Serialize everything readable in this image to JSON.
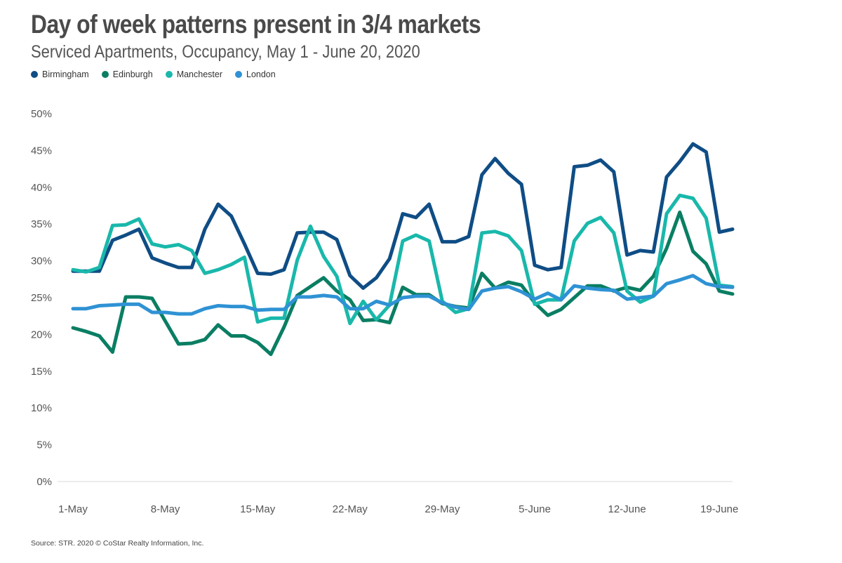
{
  "title": "Day of week patterns present in 3/4 markets",
  "subtitle": "Serviced Apartments, Occupancy, May 1 - June 20, 2020",
  "source": "Source: STR. 2020 © CoStar Realty Information, Inc.",
  "chart_data": {
    "type": "line",
    "x_start": "2020-05-01",
    "x_end": "2020-06-20",
    "x_tick_labels": [
      "1-May",
      "8-May",
      "15-May",
      "22-May",
      "29-May",
      "5-June",
      "12-June",
      "19-June"
    ],
    "y_tick_labels": [
      "0%",
      "5%",
      "10%",
      "15%",
      "20%",
      "25%",
      "30%",
      "35%",
      "40%",
      "45%",
      "50%"
    ],
    "ylim": [
      0,
      50
    ],
    "grid": false,
    "legend_position": "top-left",
    "series": [
      {
        "name": "Birmingham",
        "color": "#0f4d85",
        "values": [
          28.6,
          28.6,
          28.6,
          32.8,
          33.5,
          34.3,
          30.4,
          29.7,
          29.1,
          29.1,
          34.3,
          37.7,
          36.1,
          32.3,
          28.3,
          28.2,
          28.8,
          33.8,
          33.9,
          33.9,
          32.9,
          28.0,
          26.3,
          27.7,
          30.3,
          36.4,
          35.9,
          37.7,
          32.6,
          32.6,
          33.3,
          41.7,
          43.9,
          41.9,
          40.4,
          29.4,
          28.8,
          29.1,
          42.8,
          43.0,
          43.7,
          42.1,
          30.8,
          31.4,
          31.2,
          41.4,
          43.5,
          45.9,
          44.8,
          33.9,
          34.3
        ]
      },
      {
        "name": "Edinburgh",
        "color": "#0a7e63",
        "values": [
          20.9,
          20.4,
          19.8,
          17.6,
          25.1,
          25.1,
          24.9,
          21.8,
          18.7,
          18.8,
          19.3,
          21.3,
          19.8,
          19.8,
          18.9,
          17.3,
          21.0,
          25.3,
          26.5,
          27.7,
          25.9,
          24.7,
          21.9,
          22.0,
          21.6,
          26.4,
          25.4,
          25.4,
          24.2,
          23.8,
          23.6,
          28.3,
          26.3,
          27.1,
          26.7,
          24.3,
          22.6,
          23.4,
          25.0,
          26.6,
          26.6,
          25.9,
          26.4,
          26.0,
          27.9,
          31.7,
          36.6,
          31.3,
          29.6,
          25.9,
          25.5
        ]
      },
      {
        "name": "Manchester",
        "color": "#19b8ab",
        "values": [
          28.8,
          28.5,
          29.1,
          34.8,
          34.9,
          35.7,
          32.3,
          31.9,
          32.2,
          31.4,
          28.3,
          28.8,
          29.5,
          30.5,
          21.7,
          22.2,
          22.2,
          30.1,
          34.7,
          30.6,
          27.9,
          21.5,
          24.5,
          22.0,
          24.0,
          32.7,
          33.5,
          32.7,
          24.5,
          23.0,
          23.5,
          33.8,
          34.0,
          33.4,
          31.4,
          24.1,
          24.7,
          24.7,
          32.7,
          35.1,
          35.9,
          33.8,
          25.9,
          24.4,
          25.2,
          36.4,
          38.9,
          38.5,
          35.8,
          26.7,
          26.5
        ]
      },
      {
        "name": "London",
        "color": "#2f92d4",
        "values": [
          23.5,
          23.5,
          23.9,
          24.0,
          24.1,
          24.1,
          23.0,
          23.0,
          22.8,
          22.8,
          23.5,
          23.9,
          23.8,
          23.8,
          23.3,
          23.4,
          23.4,
          25.1,
          25.1,
          25.3,
          25.1,
          23.5,
          23.5,
          24.5,
          24.0,
          25.0,
          25.2,
          25.2,
          24.3,
          23.7,
          23.4,
          25.9,
          26.3,
          26.5,
          25.8,
          24.8,
          25.6,
          24.7,
          26.6,
          26.3,
          26.1,
          26.0,
          24.8,
          25.0,
          25.2,
          26.9,
          27.4,
          28.0,
          26.9,
          26.5,
          26.4
        ]
      }
    ]
  }
}
